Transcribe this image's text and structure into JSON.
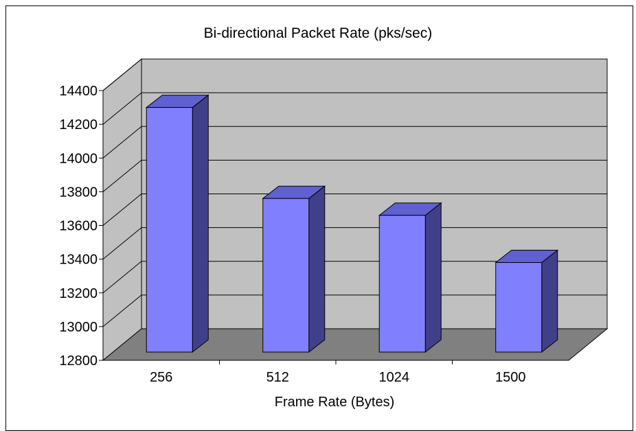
{
  "chart_data": {
    "type": "bar",
    "title": "Bi-directional Packet Rate (pks/sec)",
    "xlabel": "Frame Rate (Bytes)",
    "ylabel": "",
    "categories": [
      "256",
      "512",
      "1024",
      "1500"
    ],
    "values": [
      14300,
      13760,
      13660,
      13380
    ],
    "ylim": [
      12800,
      14400
    ],
    "yticks": [
      12800,
      13000,
      13200,
      13400,
      13600,
      13800,
      14000,
      14200,
      14400
    ],
    "grid": true,
    "legend": "none",
    "three_d": true,
    "colors": {
      "bar_front": "#8080FF",
      "bar_top": "#6060D0",
      "bar_side": "#40408A",
      "wall": "#C0C0C0",
      "floor": "#808080"
    }
  }
}
